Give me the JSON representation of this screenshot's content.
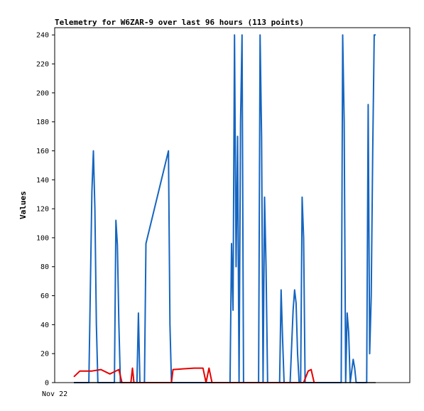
{
  "chart_data": {
    "type": "line",
    "title": "Telemetry for W6ZAR-9 over last 96 hours (113 points)",
    "xlabel": "",
    "ylabel": "Values",
    "ylim": [
      0,
      245
    ],
    "yticks": [
      0,
      20,
      40,
      60,
      80,
      100,
      120,
      140,
      160,
      180,
      200,
      220,
      240
    ],
    "x_tick_labels": [
      "Nov 22"
    ],
    "grid": false,
    "series": [
      {
        "color": "#1565c0",
        "points": [
          [
            0.0,
            0
          ],
          [
            0.05,
            0
          ],
          [
            0.06,
            132
          ],
          [
            0.065,
            160
          ],
          [
            0.07,
            120
          ],
          [
            0.075,
            40
          ],
          [
            0.08,
            0
          ],
          [
            0.135,
            0
          ],
          [
            0.14,
            112
          ],
          [
            0.145,
            95
          ],
          [
            0.15,
            40
          ],
          [
            0.155,
            0
          ],
          [
            0.21,
            0
          ],
          [
            0.215,
            48
          ],
          [
            0.22,
            0
          ],
          [
            0.235,
            0
          ],
          [
            0.24,
            96
          ],
          [
            0.315,
            160
          ],
          [
            0.32,
            40
          ],
          [
            0.325,
            0
          ],
          [
            0.52,
            0
          ],
          [
            0.525,
            96
          ],
          [
            0.53,
            50
          ],
          [
            0.535,
            240
          ],
          [
            0.54,
            80
          ],
          [
            0.545,
            170
          ],
          [
            0.55,
            0
          ],
          [
            0.555,
            180
          ],
          [
            0.56,
            240
          ],
          [
            0.565,
            0
          ],
          [
            0.615,
            0
          ],
          [
            0.62,
            240
          ],
          [
            0.625,
            170
          ],
          [
            0.63,
            0
          ],
          [
            0.635,
            128
          ],
          [
            0.64,
            80
          ],
          [
            0.645,
            0
          ],
          [
            0.685,
            0
          ],
          [
            0.69,
            64
          ],
          [
            0.695,
            30
          ],
          [
            0.7,
            0
          ],
          [
            0.72,
            0
          ],
          [
            0.73,
            50
          ],
          [
            0.735,
            64
          ],
          [
            0.74,
            55
          ],
          [
            0.745,
            20
          ],
          [
            0.75,
            0
          ],
          [
            0.755,
            0
          ],
          [
            0.76,
            128
          ],
          [
            0.765,
            100
          ],
          [
            0.77,
            0
          ],
          [
            0.89,
            0
          ],
          [
            0.895,
            240
          ],
          [
            0.9,
            180
          ],
          [
            0.905,
            0
          ],
          [
            0.91,
            48
          ],
          [
            0.915,
            35
          ],
          [
            0.92,
            0
          ],
          [
            0.93,
            16
          ],
          [
            0.935,
            10
          ],
          [
            0.94,
            0
          ],
          [
            0.975,
            0
          ],
          [
            0.98,
            192
          ],
          [
            0.985,
            20
          ],
          [
            0.99,
            60
          ],
          [
            0.995,
            160
          ],
          [
            1.0,
            240
          ],
          [
            1.005,
            240
          ]
        ]
      },
      {
        "color": "#e60000",
        "points": [
          [
            0.0,
            4
          ],
          [
            0.02,
            8
          ],
          [
            0.06,
            8
          ],
          [
            0.09,
            9
          ],
          [
            0.12,
            6
          ],
          [
            0.15,
            9
          ],
          [
            0.16,
            0
          ],
          [
            0.19,
            0
          ],
          [
            0.195,
            10
          ],
          [
            0.2,
            0
          ],
          [
            0.24,
            0
          ],
          [
            0.325,
            0
          ],
          [
            0.33,
            9
          ],
          [
            0.4,
            10
          ],
          [
            0.43,
            10
          ],
          [
            0.44,
            0
          ],
          [
            0.45,
            10
          ],
          [
            0.46,
            0
          ],
          [
            0.765,
            0
          ],
          [
            0.78,
            8
          ],
          [
            0.79,
            9
          ],
          [
            0.8,
            0
          ],
          [
            0.81,
            0
          ]
        ]
      },
      {
        "color": "#000000",
        "points": [
          [
            0.0,
            0
          ],
          [
            1.005,
            0
          ]
        ]
      }
    ]
  }
}
